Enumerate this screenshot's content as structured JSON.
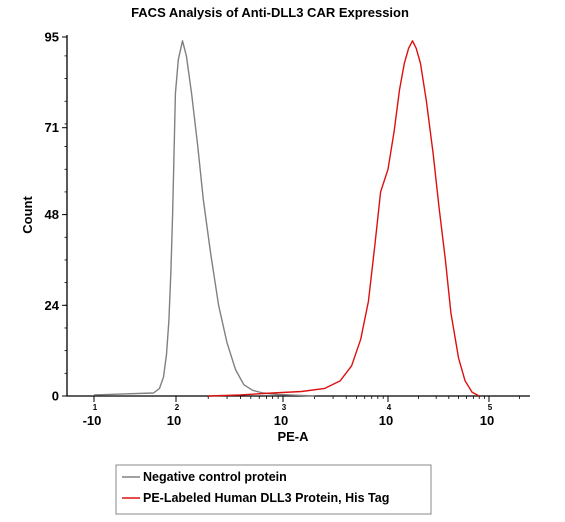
{
  "chart_data": {
    "type": "line",
    "title": "FACS Analysis of Anti-DLL3 CAR Expression",
    "xlabel": "PE-A",
    "ylabel": "Count",
    "x_scale": "biexponential",
    "xlim": [
      -15,
      300000
    ],
    "ylim": [
      0,
      95
    ],
    "x_ticks": [
      {
        "value": -10,
        "base": "-10",
        "exp": "1"
      },
      {
        "value": 100,
        "base": "10",
        "exp": "2"
      },
      {
        "value": 1000,
        "base": "10",
        "exp": "3"
      },
      {
        "value": 10000,
        "base": "10",
        "exp": "4"
      },
      {
        "value": 100000,
        "base": "10",
        "exp": "5"
      }
    ],
    "y_ticks": [
      0,
      24,
      48,
      71,
      95
    ],
    "grid": false,
    "legend_position": "bottom",
    "series": [
      {
        "name": "Negative control protein",
        "color": "#808080",
        "points": [
          [
            -10,
            0.3
          ],
          [
            15,
            0.8
          ],
          [
            25,
            2
          ],
          [
            35,
            5
          ],
          [
            45,
            11
          ],
          [
            55,
            20
          ],
          [
            65,
            33
          ],
          [
            75,
            48
          ],
          [
            85,
            65
          ],
          [
            95,
            80
          ],
          [
            105,
            89
          ],
          [
            115,
            94
          ],
          [
            125,
            90
          ],
          [
            140,
            80
          ],
          [
            160,
            66
          ],
          [
            180,
            52
          ],
          [
            210,
            38
          ],
          [
            250,
            24
          ],
          [
            300,
            14
          ],
          [
            360,
            7
          ],
          [
            430,
            3
          ],
          [
            520,
            1.5
          ],
          [
            650,
            0.8
          ],
          [
            900,
            0.4
          ],
          [
            1300,
            0.2
          ],
          [
            2000,
            0
          ]
        ]
      },
      {
        "name": "PE-Labeled Human DLL3 Protein, His Tag",
        "color": "#dd1010",
        "points": [
          [
            200,
            0
          ],
          [
            400,
            0.3
          ],
          [
            800,
            0.8
          ],
          [
            1500,
            1.2
          ],
          [
            2500,
            2
          ],
          [
            3500,
            4
          ],
          [
            4500,
            8
          ],
          [
            5500,
            15
          ],
          [
            6500,
            25
          ],
          [
            7500,
            40
          ],
          [
            8500,
            54
          ],
          [
            10000,
            60
          ],
          [
            11500,
            70
          ],
          [
            13000,
            81
          ],
          [
            14500,
            88
          ],
          [
            16000,
            92
          ],
          [
            17500,
            94
          ],
          [
            19000,
            92
          ],
          [
            21000,
            88
          ],
          [
            24000,
            78
          ],
          [
            28000,
            64
          ],
          [
            32000,
            50
          ],
          [
            37000,
            36
          ],
          [
            42000,
            22
          ],
          [
            50000,
            10
          ],
          [
            58000,
            4
          ],
          [
            68000,
            1
          ],
          [
            80000,
            0
          ]
        ]
      }
    ]
  }
}
